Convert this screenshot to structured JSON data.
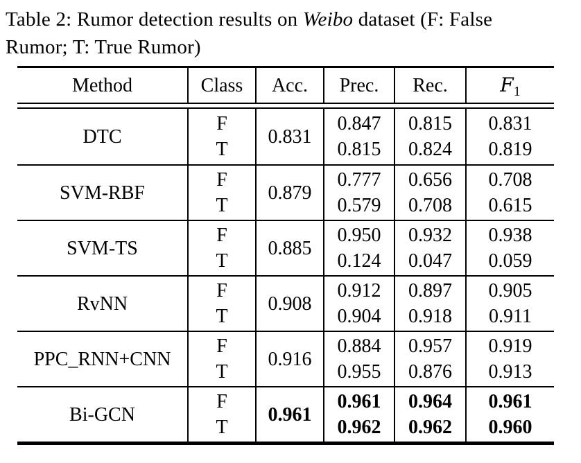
{
  "caption": {
    "line1_prefix": "Table 2: Rumor detection results on ",
    "line1_italic": "Weibo",
    "line1_suffix": " dataset (F: False",
    "line2": "Rumor; T: True Rumor)"
  },
  "table": {
    "headers": {
      "method": "Method",
      "class": "Class",
      "acc": "Acc.",
      "prec": "Prec.",
      "rec": "Rec.",
      "f1_base": "F",
      "f1_sub": "1"
    },
    "rows": [
      {
        "method": "DTC",
        "classes": [
          "F",
          "T"
        ],
        "acc": "0.831",
        "prec": [
          "0.847",
          "0.815"
        ],
        "rec": [
          "0.815",
          "0.824"
        ],
        "f1": [
          "0.831",
          "0.819"
        ],
        "bold": false
      },
      {
        "method": "SVM-RBF",
        "classes": [
          "F",
          "T"
        ],
        "acc": "0.879",
        "prec": [
          "0.777",
          "0.579"
        ],
        "rec": [
          "0.656",
          "0.708"
        ],
        "f1": [
          "0.708",
          "0.615"
        ],
        "bold": false
      },
      {
        "method": "SVM-TS",
        "classes": [
          "F",
          "T"
        ],
        "acc": "0.885",
        "prec": [
          "0.950",
          "0.124"
        ],
        "rec": [
          "0.932",
          "0.047"
        ],
        "f1": [
          "0.938",
          "0.059"
        ],
        "bold": false
      },
      {
        "method": "RvNN",
        "classes": [
          "F",
          "T"
        ],
        "acc": "0.908",
        "prec": [
          "0.912",
          "0.904"
        ],
        "rec": [
          "0.897",
          "0.918"
        ],
        "f1": [
          "0.905",
          "0.911"
        ],
        "bold": false
      },
      {
        "method": "PPC_RNN+CNN",
        "classes": [
          "F",
          "T"
        ],
        "acc": "0.916",
        "prec": [
          "0.884",
          "0.955"
        ],
        "rec": [
          "0.957",
          "0.876"
        ],
        "f1": [
          "0.919",
          "0.913"
        ],
        "bold": false
      },
      {
        "method": "Bi-GCN",
        "classes": [
          "F",
          "T"
        ],
        "acc": "0.961",
        "prec": [
          "0.961",
          "0.962"
        ],
        "rec": [
          "0.964",
          "0.962"
        ],
        "f1": [
          "0.961",
          "0.960"
        ],
        "bold": true
      }
    ]
  }
}
